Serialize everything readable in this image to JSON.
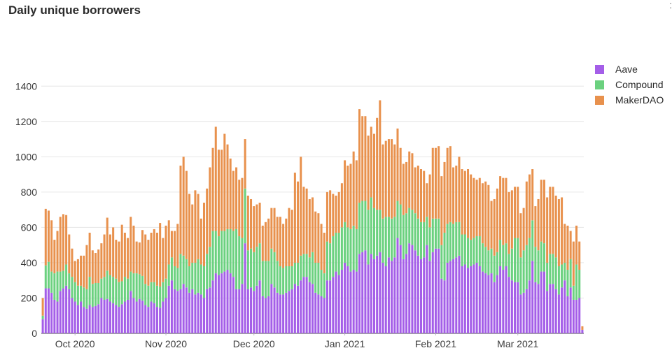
{
  "title": "Daily unique borrowers",
  "corner_mark": ":",
  "legend": {
    "items": [
      {
        "name": "Aave",
        "color": "#a45ee8"
      },
      {
        "name": "Compound",
        "color": "#6bd17f"
      },
      {
        "name": "MakerDAO",
        "color": "#e8914d"
      }
    ]
  },
  "chart_data": {
    "type": "bar",
    "stacked": true,
    "title": "Daily unique borrowers",
    "xlabel": "",
    "ylabel": "",
    "ylim": [
      0,
      1500
    ],
    "y_ticks": [
      0,
      200,
      400,
      600,
      800,
      1000,
      1200,
      1400
    ],
    "x_ticks": [
      {
        "label": "Oct 2020",
        "index": 11
      },
      {
        "label": "Nov 2020",
        "index": 42
      },
      {
        "label": "Dec 2020",
        "index": 72
      },
      {
        "label": "Jan 2021",
        "index": 103
      },
      {
        "label": "Feb 2021",
        "index": 134
      },
      {
        "label": "Mar 2021",
        "index": 162
      }
    ],
    "grid": true,
    "legend_position": "top-right",
    "categories": [
      "2020-09-20",
      "2020-09-21",
      "2020-09-22",
      "2020-09-23",
      "2020-09-24",
      "2020-09-25",
      "2020-09-26",
      "2020-09-27",
      "2020-09-28",
      "2020-09-29",
      "2020-09-30",
      "2020-10-01",
      "2020-10-02",
      "2020-10-03",
      "2020-10-04",
      "2020-10-05",
      "2020-10-06",
      "2020-10-07",
      "2020-10-08",
      "2020-10-09",
      "2020-10-10",
      "2020-10-11",
      "2020-10-12",
      "2020-10-13",
      "2020-10-14",
      "2020-10-15",
      "2020-10-16",
      "2020-10-17",
      "2020-10-18",
      "2020-10-19",
      "2020-10-20",
      "2020-10-21",
      "2020-10-22",
      "2020-10-23",
      "2020-10-24",
      "2020-10-25",
      "2020-10-26",
      "2020-10-27",
      "2020-10-28",
      "2020-10-29",
      "2020-10-30",
      "2020-10-31",
      "2020-11-01",
      "2020-11-02",
      "2020-11-03",
      "2020-11-04",
      "2020-11-05",
      "2020-11-06",
      "2020-11-07",
      "2020-11-08",
      "2020-11-09",
      "2020-11-10",
      "2020-11-11",
      "2020-11-12",
      "2020-11-13",
      "2020-11-14",
      "2020-11-15",
      "2020-11-16",
      "2020-11-17",
      "2020-11-18",
      "2020-11-19",
      "2020-11-20",
      "2020-11-21",
      "2020-11-22",
      "2020-11-23",
      "2020-11-24",
      "2020-11-25",
      "2020-11-26",
      "2020-11-27",
      "2020-11-28",
      "2020-11-29",
      "2020-11-30",
      "2020-12-01",
      "2020-12-02",
      "2020-12-03",
      "2020-12-04",
      "2020-12-05",
      "2020-12-06",
      "2020-12-07",
      "2020-12-08",
      "2020-12-09",
      "2020-12-10",
      "2020-12-11",
      "2020-12-12",
      "2020-12-13",
      "2020-12-14",
      "2020-12-15",
      "2020-12-16",
      "2020-12-17",
      "2020-12-18",
      "2020-12-19",
      "2020-12-20",
      "2020-12-21",
      "2020-12-22",
      "2020-12-23",
      "2020-12-24",
      "2020-12-25",
      "2020-12-26",
      "2020-12-27",
      "2020-12-28",
      "2020-12-29",
      "2020-12-30",
      "2020-12-31",
      "2021-01-01",
      "2021-01-02",
      "2021-01-03",
      "2021-01-04",
      "2021-01-05",
      "2021-01-06",
      "2021-01-07",
      "2021-01-08",
      "2021-01-09",
      "2021-01-10",
      "2021-01-11",
      "2021-01-12",
      "2021-01-13",
      "2021-01-14",
      "2021-01-15",
      "2021-01-16",
      "2021-01-17",
      "2021-01-18",
      "2021-01-19",
      "2021-01-20",
      "2021-01-21",
      "2021-01-22",
      "2021-01-23",
      "2021-01-24",
      "2021-01-25",
      "2021-01-26",
      "2021-01-27",
      "2021-01-28",
      "2021-01-29",
      "2021-01-30",
      "2021-01-31",
      "2021-02-01",
      "2021-02-02",
      "2021-02-03",
      "2021-02-04",
      "2021-02-05",
      "2021-02-06",
      "2021-02-07",
      "2021-02-08",
      "2021-02-09",
      "2021-02-10",
      "2021-02-11",
      "2021-02-12",
      "2021-02-13",
      "2021-02-14",
      "2021-02-15",
      "2021-02-16",
      "2021-02-17",
      "2021-02-18",
      "2021-02-19",
      "2021-02-20",
      "2021-02-21",
      "2021-02-22",
      "2021-02-23",
      "2021-02-24",
      "2021-02-25",
      "2021-02-26",
      "2021-02-27",
      "2021-02-28",
      "2021-03-01",
      "2021-03-02",
      "2021-03-03",
      "2021-03-04",
      "2021-03-05",
      "2021-03-06",
      "2021-03-07",
      "2021-03-08",
      "2021-03-09",
      "2021-03-10",
      "2021-03-11",
      "2021-03-12",
      "2021-03-13",
      "2021-03-14",
      "2021-03-15",
      "2021-03-16",
      "2021-03-17",
      "2021-03-18",
      "2021-03-19",
      "2021-03-20",
      "2021-03-21",
      "2021-03-22",
      "2021-03-23"
    ],
    "series": [
      {
        "name": "Aave",
        "color": "#a45ee8",
        "values": [
          80,
          255,
          255,
          230,
          190,
          180,
          240,
          255,
          270,
          250,
          200,
          180,
          160,
          180,
          150,
          140,
          160,
          150,
          155,
          165,
          200,
          190,
          195,
          180,
          170,
          160,
          150,
          165,
          180,
          190,
          240,
          200,
          180,
          195,
          185,
          160,
          150,
          180,
          170,
          150,
          145,
          180,
          200,
          270,
          300,
          250,
          240,
          250,
          280,
          260,
          230,
          250,
          220,
          230,
          220,
          200,
          250,
          260,
          300,
          340,
          330,
          340,
          350,
          360,
          340,
          320,
          250,
          250,
          280,
          510,
          250,
          260,
          240,
          270,
          300,
          210,
          200,
          210,
          280,
          260,
          230,
          220,
          220,
          230,
          240,
          250,
          280,
          270,
          300,
          320,
          320,
          290,
          280,
          230,
          220,
          210,
          200,
          300,
          300,
          320,
          350,
          330,
          360,
          400,
          380,
          350,
          360,
          350,
          450,
          460,
          470,
          390,
          450,
          420,
          440,
          460,
          400,
          380,
          430,
          410,
          430,
          540,
          500,
          420,
          450,
          510,
          500,
          470,
          440,
          420,
          430,
          500,
          410,
          460,
          480,
          480,
          310,
          300,
          400,
          410,
          420,
          430,
          440,
          380,
          390,
          370,
          380,
          390,
          400,
          380,
          350,
          340,
          330,
          340,
          290,
          330,
          380,
          360,
          380,
          320,
          300,
          290,
          290,
          220,
          230,
          250,
          300,
          410,
          290,
          280,
          350,
          350,
          240,
          280,
          280,
          250,
          220,
          260,
          300,
          210,
          260,
          190,
          190,
          200,
          20
        ]
      },
      {
        "name": "Compound",
        "color": "#6bd17f",
        "values": [
          20,
          130,
          150,
          120,
          150,
          170,
          110,
          100,
          120,
          90,
          120,
          110,
          110,
          90,
          110,
          110,
          160,
          130,
          130,
          120,
          110,
          130,
          160,
          150,
          150,
          150,
          140,
          130,
          140,
          120,
          110,
          140,
          160,
          140,
          140,
          120,
          120,
          110,
          120,
          120,
          120,
          110,
          110,
          120,
          130,
          130,
          130,
          200,
          160,
          160,
          150,
          150,
          180,
          190,
          170,
          180,
          200,
          230,
          280,
          240,
          220,
          240,
          230,
          230,
          250,
          260,
          340,
          300,
          260,
          310,
          220,
          220,
          220,
          220,
          210,
          200,
          210,
          200,
          200,
          200,
          180,
          160,
          150,
          150,
          140,
          130,
          120,
          130,
          140,
          130,
          130,
          140,
          180,
          170,
          180,
          150,
          140,
          220,
          210,
          230,
          220,
          240,
          240,
          230,
          220,
          240,
          250,
          240,
          290,
          290,
          280,
          310,
          320,
          290,
          260,
          240,
          250,
          280,
          230,
          240,
          230,
          210,
          230,
          250,
          230,
          200,
          200,
          210,
          210,
          210,
          200,
          160,
          190,
          190,
          170,
          170,
          190,
          270,
          220,
          220,
          200,
          200,
          190,
          180,
          170,
          170,
          150,
          150,
          150,
          170,
          160,
          150,
          140,
          140,
          150,
          130,
          150,
          140,
          130,
          130,
          180,
          250,
          250,
          210,
          240,
          250,
          240,
          230,
          200,
          190,
          170,
          160,
          160,
          170,
          170,
          180,
          160,
          130,
          100,
          150,
          160,
          80,
          200,
          160,
          0
        ]
      },
      {
        "name": "MakerDAO",
        "color": "#e8914d",
        "values": [
          100,
          320,
          290,
          290,
          190,
          230,
          310,
          320,
          280,
          220,
          160,
          120,
          150,
          170,
          180,
          250,
          250,
          190,
          170,
          190,
          200,
          240,
          300,
          230,
          280,
          220,
          230,
          320,
          250,
          230,
          310,
          270,
          180,
          180,
          260,
          280,
          260,
          280,
          300,
          300,
          360,
          250,
          300,
          250,
          150,
          200,
          250,
          500,
          560,
          500,
          410,
          330,
          410,
          370,
          260,
          360,
          370,
          450,
          470,
          590,
          490,
          460,
          550,
          480,
          400,
          340,
          350,
          320,
          340,
          280,
          310,
          280,
          260,
          240,
          230,
          200,
          220,
          240,
          230,
          250,
          250,
          280,
          250,
          270,
          330,
          320,
          510,
          460,
          560,
          380,
          370,
          330,
          310,
          290,
          280,
          260,
          230,
          280,
          300,
          240,
          210,
          230,
          250,
          350,
          350,
          370,
          420,
          390,
          530,
          480,
          480,
          420,
          400,
          420,
          520,
          620,
          420,
          430,
          440,
          450,
          410,
          410,
          320,
          290,
          290,
          320,
          320,
          260,
          300,
          300,
          290,
          190,
          300,
          400,
          400,
          410,
          390,
          400,
          430,
          430,
          320,
          320,
          370,
          370,
          360,
          390,
          370,
          340,
          320,
          330,
          340,
          370,
          370,
          270,
          320,
          360,
          360,
          380,
          370,
          350,
          330,
          290,
          290,
          250,
          240,
          360,
          360,
          290,
          230,
          290,
          350,
          360,
          370,
          380,
          380,
          350,
          380,
          380,
          220,
          250,
          160,
          250,
          220,
          160,
          20
        ]
      }
    ]
  }
}
